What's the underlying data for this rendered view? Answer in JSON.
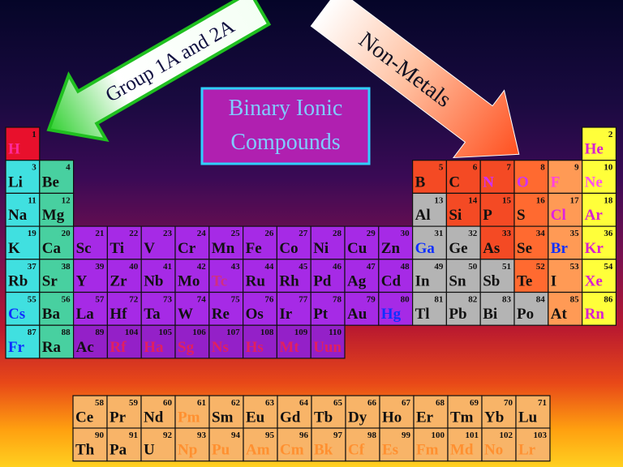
{
  "title": "Binary Ionic Compounds",
  "arrows": {
    "left": "Group 1A and 2A",
    "right": "Non-Metals"
  },
  "elements": [
    {
      "number": 1,
      "symbol": "H",
      "text_color": "#ff2a9a"
    },
    {
      "number": 2,
      "symbol": "He",
      "text_color": "#d820d0"
    },
    {
      "number": 3,
      "symbol": "Li"
    },
    {
      "number": 4,
      "symbol": "Be"
    },
    {
      "number": 5,
      "symbol": "B"
    },
    {
      "number": 6,
      "symbol": "C"
    },
    {
      "number": 7,
      "symbol": "N",
      "text_color": "#d030ff"
    },
    {
      "number": 8,
      "symbol": "O",
      "text_color": "#d030ff"
    },
    {
      "number": 9,
      "symbol": "F",
      "text_color": "#ff40e0"
    },
    {
      "number": 10,
      "symbol": "Ne",
      "text_color": "#ff50f0"
    },
    {
      "number": 11,
      "symbol": "Na"
    },
    {
      "number": 12,
      "symbol": "Mg"
    },
    {
      "number": 13,
      "symbol": "Al"
    },
    {
      "number": 14,
      "symbol": "Si"
    },
    {
      "number": 15,
      "symbol": "P"
    },
    {
      "number": 16,
      "symbol": "S"
    },
    {
      "number": 17,
      "symbol": "Cl",
      "text_color": "#e020e0"
    },
    {
      "number": 18,
      "symbol": "Ar",
      "text_color": "#d820d0"
    },
    {
      "number": 19,
      "symbol": "K"
    },
    {
      "number": 20,
      "symbol": "Ca"
    },
    {
      "number": 21,
      "symbol": "Sc"
    },
    {
      "number": 22,
      "symbol": "Ti"
    },
    {
      "number": 23,
      "symbol": "V"
    },
    {
      "number": 24,
      "symbol": "Cr"
    },
    {
      "number": 25,
      "symbol": "Mn"
    },
    {
      "number": 26,
      "symbol": "Fe"
    },
    {
      "number": 27,
      "symbol": "Co"
    },
    {
      "number": 28,
      "symbol": "Ni"
    },
    {
      "number": 29,
      "symbol": "Cu"
    },
    {
      "number": 30,
      "symbol": "Zn"
    },
    {
      "number": 31,
      "symbol": "Ga",
      "text_color": "#1030ff"
    },
    {
      "number": 32,
      "symbol": "Ge"
    },
    {
      "number": 33,
      "symbol": "As"
    },
    {
      "number": 34,
      "symbol": "Se"
    },
    {
      "number": 35,
      "symbol": "Br",
      "text_color": "#1030ff"
    },
    {
      "number": 36,
      "symbol": "Kr",
      "text_color": "#d820d0"
    },
    {
      "number": 37,
      "symbol": "Rb"
    },
    {
      "number": 38,
      "symbol": "Sr"
    },
    {
      "number": 39,
      "symbol": "Y"
    },
    {
      "number": 40,
      "symbol": "Zr"
    },
    {
      "number": 41,
      "symbol": "Nb"
    },
    {
      "number": 42,
      "symbol": "Mo"
    },
    {
      "number": 43,
      "symbol": "Tc",
      "text_color": "#d03080"
    },
    {
      "number": 44,
      "symbol": "Ru"
    },
    {
      "number": 45,
      "symbol": "Rh"
    },
    {
      "number": 46,
      "symbol": "Pd"
    },
    {
      "number": 47,
      "symbol": "Ag"
    },
    {
      "number": 48,
      "symbol": "Cd"
    },
    {
      "number": 49,
      "symbol": "In"
    },
    {
      "number": 50,
      "symbol": "Sn"
    },
    {
      "number": 51,
      "symbol": "Sb"
    },
    {
      "number": 52,
      "symbol": "Te"
    },
    {
      "number": 53,
      "symbol": "I"
    },
    {
      "number": 54,
      "symbol": "Xe",
      "text_color": "#d820d0"
    },
    {
      "number": 55,
      "symbol": "Cs",
      "text_color": "#1030ff"
    },
    {
      "number": 56,
      "symbol": "Ba"
    },
    {
      "number": 57,
      "symbol": "La"
    },
    {
      "number": 58,
      "symbol": "Ce"
    },
    {
      "number": 59,
      "symbol": "Pr"
    },
    {
      "number": 60,
      "symbol": "Nd"
    },
    {
      "number": 61,
      "symbol": "Pm",
      "text_color": "#ff9030"
    },
    {
      "number": 62,
      "symbol": "Sm"
    },
    {
      "number": 63,
      "symbol": "Eu"
    },
    {
      "number": 64,
      "symbol": "Gd"
    },
    {
      "number": 65,
      "symbol": "Tb"
    },
    {
      "number": 66,
      "symbol": "Dy"
    },
    {
      "number": 67,
      "symbol": "Ho"
    },
    {
      "number": 68,
      "symbol": "Er"
    },
    {
      "number": 69,
      "symbol": "Tm"
    },
    {
      "number": 70,
      "symbol": "Yb"
    },
    {
      "number": 71,
      "symbol": "Lu"
    },
    {
      "number": 72,
      "symbol": "Hf"
    },
    {
      "number": 73,
      "symbol": "Ta"
    },
    {
      "number": 74,
      "symbol": "W"
    },
    {
      "number": 75,
      "symbol": "Re"
    },
    {
      "number": 76,
      "symbol": "Os"
    },
    {
      "number": 77,
      "symbol": "Ir"
    },
    {
      "number": 78,
      "symbol": "Pt"
    },
    {
      "number": 79,
      "symbol": "Au"
    },
    {
      "number": 80,
      "symbol": "Hg",
      "text_color": "#1030ff"
    },
    {
      "number": 81,
      "symbol": "Tl"
    },
    {
      "number": 82,
      "symbol": "Pb"
    },
    {
      "number": 83,
      "symbol": "Bi"
    },
    {
      "number": 84,
      "symbol": "Po"
    },
    {
      "number": 85,
      "symbol": "At"
    },
    {
      "number": 86,
      "symbol": "Rn",
      "text_color": "#d820d0"
    },
    {
      "number": 87,
      "symbol": "Fr",
      "text_color": "#1030ff"
    },
    {
      "number": 88,
      "symbol": "Ra"
    },
    {
      "number": 89,
      "symbol": "Ac"
    },
    {
      "number": 90,
      "symbol": "Th"
    },
    {
      "number": 91,
      "symbol": "Pa"
    },
    {
      "number": 92,
      "symbol": "U"
    },
    {
      "number": 93,
      "symbol": "Np",
      "text_color": "#ff9030"
    },
    {
      "number": 94,
      "symbol": "Pu",
      "text_color": "#ff9030"
    },
    {
      "number": 95,
      "symbol": "Am",
      "text_color": "#ff9030"
    },
    {
      "number": 96,
      "symbol": "Cm",
      "text_color": "#ff9030"
    },
    {
      "number": 97,
      "symbol": "Bk",
      "text_color": "#ff9030"
    },
    {
      "number": 98,
      "symbol": "Cf",
      "text_color": "#ff9030"
    },
    {
      "number": 99,
      "symbol": "Es",
      "text_color": "#ff9030"
    },
    {
      "number": 100,
      "symbol": "Fm",
      "text_color": "#ff9030"
    },
    {
      "number": 101,
      "symbol": "Md",
      "text_color": "#ff9030"
    },
    {
      "number": 102,
      "symbol": "No",
      "text_color": "#ff9030"
    },
    {
      "number": 103,
      "symbol": "Lr",
      "text_color": "#ff9030"
    },
    {
      "number": 104,
      "symbol": "Rf",
      "text_color": "#e02060"
    },
    {
      "number": 105,
      "symbol": "Ha",
      "text_color": "#e02060"
    },
    {
      "number": 106,
      "symbol": "Sg",
      "text_color": "#e02060"
    },
    {
      "number": 107,
      "symbol": "Ns",
      "text_color": "#e02060"
    },
    {
      "number": 108,
      "symbol": "Hs",
      "text_color": "#e02060"
    },
    {
      "number": 109,
      "symbol": "Mt",
      "text_color": "#e02060"
    },
    {
      "number": 110,
      "symbol": "Uun",
      "text_color": "#e02060"
    }
  ]
}
